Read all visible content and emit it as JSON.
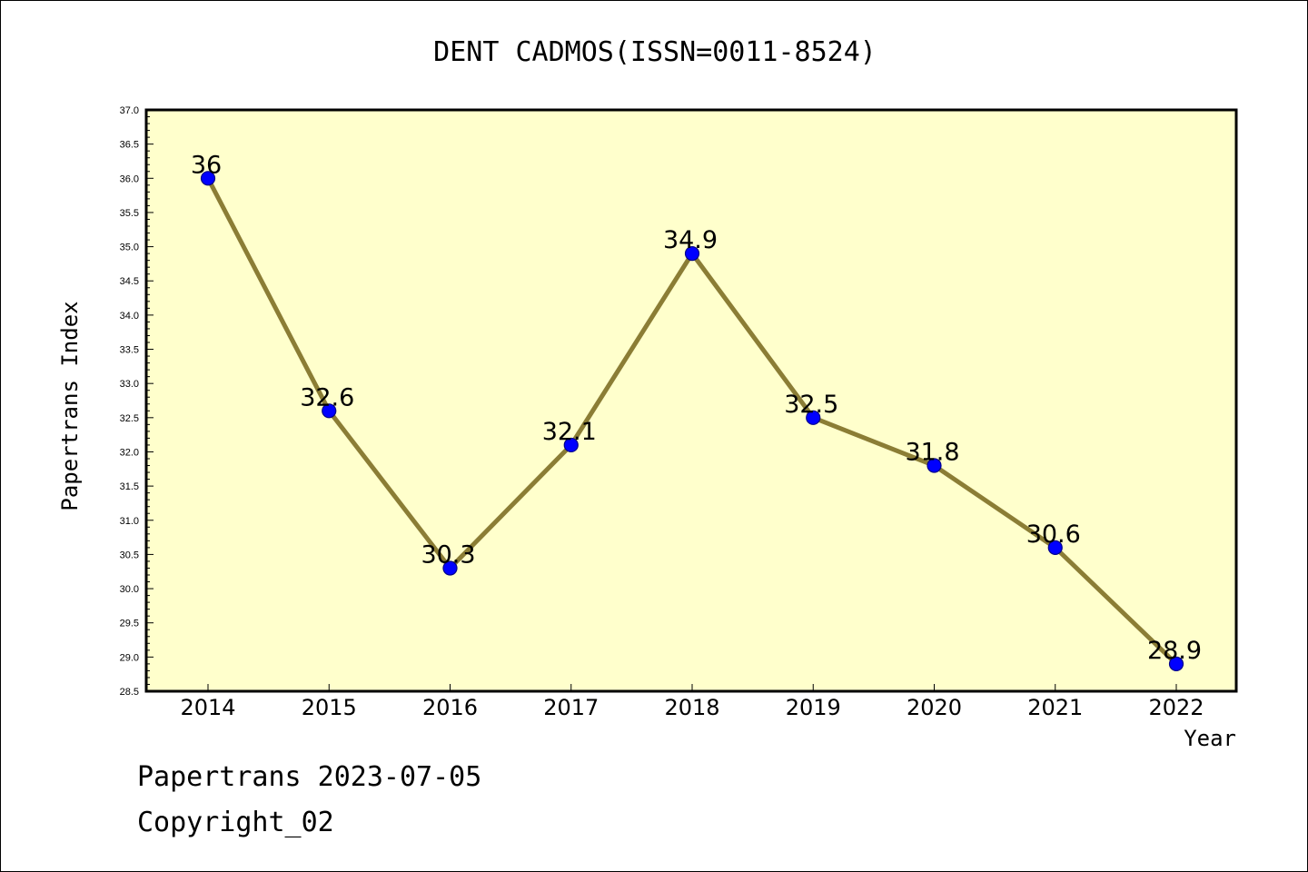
{
  "chart_data": {
    "type": "line",
    "title": "DENT CADMOS(ISSN=0011-8524)",
    "xlabel": "Year",
    "ylabel": "Papertrans Index",
    "categories": [
      "2014",
      "2015",
      "2016",
      "2017",
      "2018",
      "2019",
      "2020",
      "2021",
      "2022"
    ],
    "values": [
      36,
      32.6,
      30.3,
      32.1,
      34.9,
      32.5,
      31.8,
      30.6,
      28.9
    ],
    "data_labels": [
      "36",
      "32.6",
      "30.3",
      "32.1",
      "34.9",
      "32.5",
      "31.8",
      "30.6",
      "28.9"
    ],
    "ylim": [
      28.5,
      37.0
    ],
    "yticks": [
      "28.5",
      "29.0",
      "29.5",
      "30.0",
      "30.5",
      "31.0",
      "31.5",
      "32.0",
      "32.5",
      "33.0",
      "33.5",
      "34.0",
      "34.5",
      "35.0",
      "35.5",
      "36.0",
      "36.5",
      "37.0"
    ],
    "grid": false,
    "colors": {
      "plot_background": "#ffffcc",
      "line": "#8b7d35",
      "marker": "#0000ff",
      "marker_edge": "#00008b",
      "frame": "#000000"
    }
  },
  "footer": {
    "line1": "Papertrans 2023-07-05",
    "line2": "Copyright_02"
  }
}
